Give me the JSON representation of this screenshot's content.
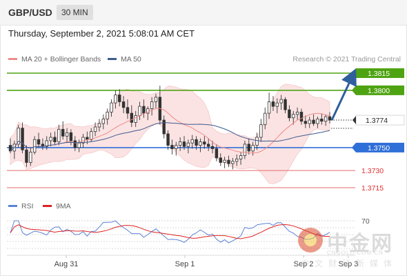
{
  "header": {
    "symbol": "GBP/USD",
    "timeframe": "30 MIN"
  },
  "datetime": "Thursday, September 2, 2021 5:08:01 AM CET",
  "legend": {
    "items": [
      {
        "label": "MA 20 + Bollinger Bands",
        "color": "#f08a8a"
      },
      {
        "label": "MA 50",
        "color": "#3c5a8c"
      }
    ],
    "credit": "Research © 2021 Trading Central"
  },
  "rsi_legend": {
    "items": [
      {
        "label": "RSI",
        "color": "#5a82d6"
      },
      {
        "label": "9MA",
        "color": "#e02020"
      }
    ]
  },
  "watermark": {
    "title": "中金网",
    "url": "CNGOLD.COM.CN",
    "subtitle": "中文财经新媒体"
  },
  "colors": {
    "green_level": "#4ea312",
    "blue_level": "#2f6fd8",
    "red_level": "#e86a6a",
    "arrow": "#2f5f9c",
    "candle": "#333333",
    "band_fill": "#fadada"
  },
  "chart_data": {
    "type": "candlestick",
    "price_axis": {
      "min": 1.37,
      "max": 1.383
    },
    "x_tick_labels": [
      "Aug 31",
      "Sep 1",
      "Sep 2",
      "Sep 3"
    ],
    "current_price": {
      "label": "1.3774",
      "value": 1.3774
    },
    "levels": [
      {
        "label": "1.3815",
        "value": 1.3815,
        "kind": "resistance"
      },
      {
        "label": "1.3800",
        "value": 1.38,
        "kind": "resistance"
      },
      {
        "label": "1.3750",
        "value": 1.375,
        "kind": "pivot"
      },
      {
        "label": "1.3730",
        "value": 1.373,
        "kind": "support"
      },
      {
        "label": "1.3715",
        "value": 1.3715,
        "kind": "support"
      }
    ],
    "target_arrow": {
      "from": 1.3774,
      "to": 1.3815
    },
    "candles": [
      [
        1.3752,
        1.3758,
        1.3745,
        1.3747
      ],
      [
        1.3747,
        1.3756,
        1.374,
        1.3753
      ],
      [
        1.3753,
        1.377,
        1.375,
        1.3767
      ],
      [
        1.3767,
        1.3772,
        1.3745,
        1.3748
      ],
      [
        1.3748,
        1.3752,
        1.3733,
        1.3737
      ],
      [
        1.3737,
        1.375,
        1.3734,
        1.3746
      ],
      [
        1.3746,
        1.376,
        1.3744,
        1.3757
      ],
      [
        1.3757,
        1.3763,
        1.375,
        1.3753
      ],
      [
        1.3753,
        1.3758,
        1.3748,
        1.3751
      ],
      [
        1.3751,
        1.376,
        1.3748,
        1.3756
      ],
      [
        1.3756,
        1.3763,
        1.3751,
        1.3759
      ],
      [
        1.3759,
        1.3764,
        1.3752,
        1.3755
      ],
      [
        1.3755,
        1.377,
        1.3752,
        1.3766
      ],
      [
        1.3766,
        1.3773,
        1.3757,
        1.376
      ],
      [
        1.376,
        1.3767,
        1.3754,
        1.3763
      ],
      [
        1.3763,
        1.3766,
        1.3752,
        1.3756
      ],
      [
        1.3756,
        1.376,
        1.3747,
        1.375
      ],
      [
        1.375,
        1.3757,
        1.3746,
        1.3754
      ],
      [
        1.3754,
        1.3762,
        1.375,
        1.3759
      ],
      [
        1.3759,
        1.3764,
        1.3753,
        1.3757
      ],
      [
        1.3757,
        1.3767,
        1.3755,
        1.3764
      ],
      [
        1.3764,
        1.3772,
        1.376,
        1.3768
      ],
      [
        1.3768,
        1.3775,
        1.3764,
        1.3771
      ],
      [
        1.3771,
        1.3779,
        1.3766,
        1.3775
      ],
      [
        1.3775,
        1.3784,
        1.377,
        1.3781
      ],
      [
        1.3781,
        1.3792,
        1.3777,
        1.3789
      ],
      [
        1.3789,
        1.38,
        1.3784,
        1.3796
      ],
      [
        1.3796,
        1.3801,
        1.3786,
        1.379
      ],
      [
        1.379,
        1.3795,
        1.378,
        1.3785
      ],
      [
        1.3785,
        1.3792,
        1.3775,
        1.378
      ],
      [
        1.378,
        1.3787,
        1.3768,
        1.3772
      ],
      [
        1.3772,
        1.3782,
        1.3768,
        1.3778
      ],
      [
        1.3778,
        1.379,
        1.3774,
        1.3786
      ],
      [
        1.3786,
        1.3792,
        1.3776,
        1.378
      ],
      [
        1.378,
        1.3786,
        1.3774,
        1.3784
      ],
      [
        1.3784,
        1.3794,
        1.3778,
        1.379
      ],
      [
        1.379,
        1.3797,
        1.3784,
        1.3794
      ],
      [
        1.3794,
        1.3804,
        1.377,
        1.3774
      ],
      [
        1.3774,
        1.3778,
        1.3758,
        1.3762
      ],
      [
        1.3762,
        1.3765,
        1.3748,
        1.3752
      ],
      [
        1.3752,
        1.3757,
        1.3744,
        1.3749
      ],
      [
        1.3749,
        1.3755,
        1.3743,
        1.3752
      ],
      [
        1.3752,
        1.3759,
        1.3747,
        1.3755
      ],
      [
        1.3755,
        1.376,
        1.3748,
        1.3751
      ],
      [
        1.3751,
        1.3757,
        1.3745,
        1.3754
      ],
      [
        1.3754,
        1.3761,
        1.3749,
        1.3757
      ],
      [
        1.3757,
        1.376,
        1.3748,
        1.3752
      ],
      [
        1.3752,
        1.3758,
        1.3746,
        1.3755
      ],
      [
        1.3755,
        1.376,
        1.3749,
        1.3753
      ],
      [
        1.3753,
        1.3758,
        1.3747,
        1.3751
      ],
      [
        1.3751,
        1.3756,
        1.3745,
        1.3749
      ],
      [
        1.3749,
        1.3753,
        1.3738,
        1.3741
      ],
      [
        1.3741,
        1.3745,
        1.3734,
        1.3737
      ],
      [
        1.3737,
        1.3742,
        1.3732,
        1.3739
      ],
      [
        1.3739,
        1.3743,
        1.3733,
        1.3736
      ],
      [
        1.3736,
        1.3741,
        1.3731,
        1.3738
      ],
      [
        1.3738,
        1.3744,
        1.3734,
        1.374
      ],
      [
        1.374,
        1.3746,
        1.3735,
        1.3743
      ],
      [
        1.3743,
        1.3756,
        1.374,
        1.3753
      ],
      [
        1.3753,
        1.3758,
        1.3744,
        1.3747
      ],
      [
        1.3747,
        1.3755,
        1.3743,
        1.3752
      ],
      [
        1.3752,
        1.3763,
        1.3748,
        1.3759
      ],
      [
        1.3759,
        1.3775,
        1.3755,
        1.377
      ],
      [
        1.377,
        1.3785,
        1.3766,
        1.378
      ],
      [
        1.378,
        1.3798,
        1.3775,
        1.379
      ],
      [
        1.379,
        1.3795,
        1.3782,
        1.3786
      ],
      [
        1.3786,
        1.3793,
        1.378,
        1.3789
      ],
      [
        1.3789,
        1.3796,
        1.3783,
        1.3792
      ],
      [
        1.3792,
        1.3794,
        1.378,
        1.3783
      ],
      [
        1.3783,
        1.3787,
        1.3773,
        1.3776
      ],
      [
        1.3776,
        1.3782,
        1.377,
        1.3779
      ],
      [
        1.3779,
        1.3785,
        1.3774,
        1.3781
      ],
      [
        1.3781,
        1.3784,
        1.377,
        1.3773
      ],
      [
        1.3773,
        1.3778,
        1.3767,
        1.3771
      ],
      [
        1.3771,
        1.3777,
        1.3767,
        1.3774
      ],
      [
        1.3774,
        1.3779,
        1.3769,
        1.3771
      ],
      [
        1.3771,
        1.3777,
        1.3767,
        1.3775
      ],
      [
        1.3775,
        1.378,
        1.377,
        1.3773
      ],
      [
        1.3773,
        1.3779,
        1.3769,
        1.3777
      ],
      [
        1.3777,
        1.3781,
        1.3771,
        1.3774
      ]
    ],
    "rsi": {
      "reference_label": "70",
      "reference_value": 70
    }
  }
}
